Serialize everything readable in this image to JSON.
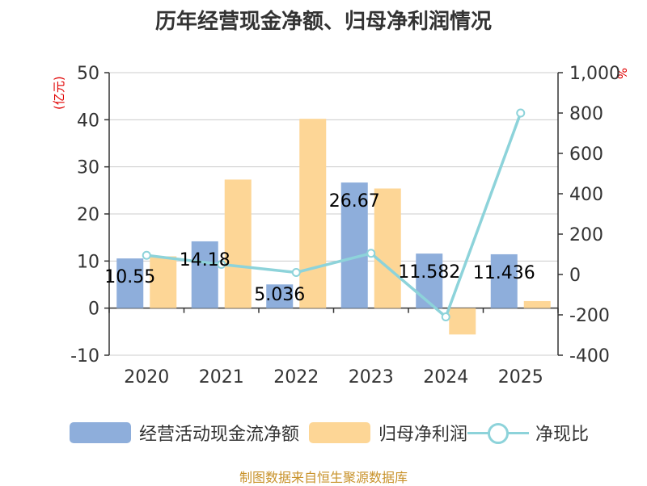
{
  "title": "历年经营现金净额、归母净利润情况",
  "left_unit": "(亿元)",
  "right_unit": "%",
  "source": "制图数据来自恒生聚源数据库",
  "colors": {
    "operating_cash": "#8eaedb",
    "net_profit": "#fdd696",
    "ratio_line": "#8dd3da",
    "label_color": "#000000",
    "axis_color": "#333333",
    "grid_color": "#cccccc"
  },
  "chart_data": {
    "type": "bar",
    "categories": [
      "2020",
      "2021",
      "2022",
      "2023",
      "2024",
      "2025"
    ],
    "series": [
      {
        "name": "经营活动现金流净额",
        "axis": "left",
        "type": "bar",
        "values": [
          10.55,
          14.18,
          5.036,
          26.67,
          11.582,
          11.436
        ],
        "labels": [
          "10.55",
          "14.18",
          "5.036",
          "26.67",
          "11.582",
          "11.436"
        ]
      },
      {
        "name": "归母净利润",
        "axis": "left",
        "type": "bar",
        "values": [
          11.0,
          27.3,
          40.2,
          25.4,
          -5.6,
          1.5
        ]
      },
      {
        "name": "净现比",
        "axis": "right",
        "type": "line",
        "values": [
          95,
          50,
          10,
          105,
          -210,
          800
        ]
      }
    ],
    "left_axis": {
      "min": -10,
      "max": 50,
      "ticks": [
        -10,
        0,
        10,
        20,
        30,
        40,
        50
      ],
      "tick_labels": [
        "-10",
        "0",
        "10",
        "20",
        "30",
        "40",
        "50"
      ]
    },
    "right_axis": {
      "min": -400,
      "max": 1000,
      "ticks": [
        -400,
        -200,
        0,
        200,
        400,
        600,
        800,
        1000
      ],
      "tick_labels": [
        "-400",
        "-200",
        "0",
        "200",
        "400",
        "600",
        "800",
        "1,000"
      ]
    },
    "legend_position": "bottom"
  }
}
